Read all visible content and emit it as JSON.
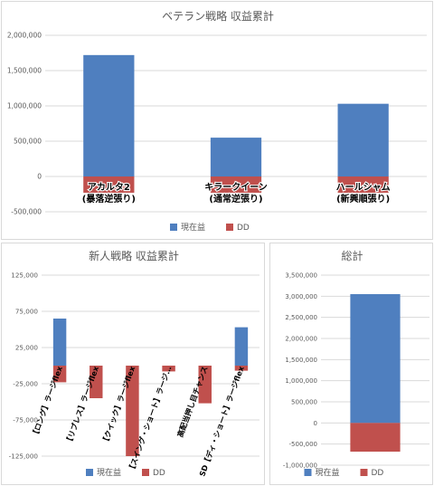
{
  "colors": {
    "current": "#4f7fbf",
    "dd": "#c0504d",
    "grid": "#d9d9d9",
    "axis_text": "#595959",
    "title": "#595959"
  },
  "legend": {
    "current": "現在益",
    "dd": "DD"
  },
  "chart_data": [
    {
      "type": "bar",
      "title": "ベテラン戦略 収益累計",
      "categories": [
        [
          "アカルタ2",
          "(暴落逆張り)"
        ],
        [
          "キラークイーン",
          "(通常逆張り)"
        ],
        [
          "ハールシャム",
          "(新興順張り)"
        ]
      ],
      "series": [
        {
          "name": "現在益",
          "values": [
            1720000,
            550000,
            1030000
          ]
        },
        {
          "name": "DD",
          "values": [
            -230000,
            -230000,
            -230000
          ]
        }
      ],
      "ylim": [
        -500000,
        2000000
      ],
      "yticks": [
        -500000,
        0,
        500000,
        1000000,
        1500000,
        2000000
      ],
      "ytick_labels": [
        "-500,000",
        "0",
        "500,000",
        "1,000,000",
        "1,500,000",
        "2,000,000"
      ],
      "grid": true,
      "legend": "bottom"
    },
    {
      "type": "bar",
      "title": "新人戦略 収益累計",
      "categories": [
        "【ロング】ラージflex",
        "【リブレス】ラージflex",
        "【クイック】ラージflex",
        "【スイング・ショート】ラージ…",
        "高配当押し目チャンス",
        "SD【ディ・ショート】ラージflex"
      ],
      "series": [
        {
          "name": "現在益",
          "values": [
            65000,
            0,
            0,
            0,
            0,
            53000
          ]
        },
        {
          "name": "DD",
          "values": [
            -23000,
            -45000,
            -125000,
            -8000,
            -52000,
            -7000
          ]
        }
      ],
      "ylim": [
        -125000,
        125000
      ],
      "yticks": [
        -125000,
        -75000,
        -25000,
        25000,
        75000,
        125000
      ],
      "ytick_labels": [
        "-125,000",
        "-75,000",
        "-25,000",
        "25,000",
        "75,000",
        "125,000"
      ],
      "grid": true,
      "legend": "bottom"
    },
    {
      "type": "bar",
      "title": "総計",
      "categories": [
        ""
      ],
      "series": [
        {
          "name": "現在益",
          "values": [
            3050000
          ]
        },
        {
          "name": "DD",
          "values": [
            -680000
          ]
        }
      ],
      "ylim": [
        -1000000,
        3500000
      ],
      "yticks": [
        -1000000,
        -500000,
        0,
        500000,
        1000000,
        1500000,
        2000000,
        2500000,
        3000000,
        3500000
      ],
      "ytick_labels": [
        "-1,000,000",
        "-500,000",
        "0",
        "500,000",
        "1,000,000",
        "1,500,000",
        "2,000,000",
        "2,500,000",
        "3,000,000",
        "3,500,000"
      ],
      "grid": true,
      "legend": "bottom"
    }
  ]
}
